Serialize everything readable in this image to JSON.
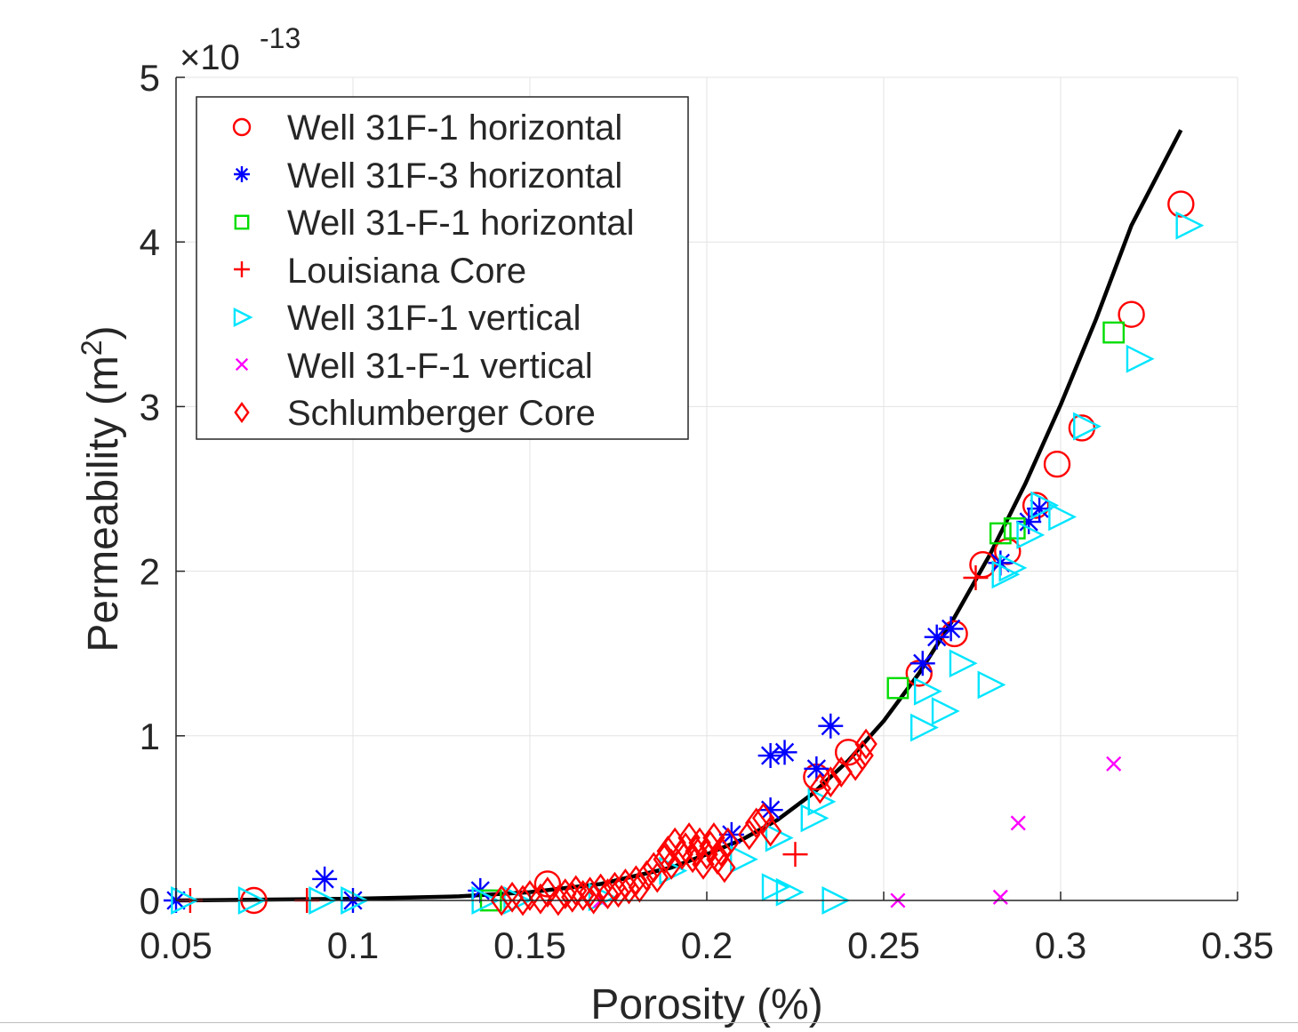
{
  "chart_data": {
    "type": "scatter",
    "xlabel": "Porosity (%)",
    "ylabel_base": "Permeability (m",
    "ylabel_sup": "2",
    "ylabel_close": ")",
    "exponent_prefix": "×10",
    "exponent_power": "-13",
    "xlim": [
      0.05,
      0.35
    ],
    "ylim": [
      0,
      5
    ],
    "xticks": [
      "0.05",
      "0.1",
      "0.15",
      "0.2",
      "0.25",
      "0.3",
      "0.35"
    ],
    "yticks": [
      "0",
      "1",
      "2",
      "3",
      "4",
      "5"
    ],
    "grid": true,
    "legend_position": "top-left",
    "series": [
      {
        "name": "Well 31F-1 horizontal",
        "marker": "circle",
        "color": "#ff0000",
        "points": [
          [
            0.072,
            0.0
          ],
          [
            0.155,
            0.1
          ],
          [
            0.231,
            0.75
          ],
          [
            0.24,
            0.9
          ],
          [
            0.26,
            1.38
          ],
          [
            0.27,
            1.62
          ],
          [
            0.278,
            2.04
          ],
          [
            0.285,
            2.12
          ],
          [
            0.293,
            2.4
          ],
          [
            0.299,
            2.65
          ],
          [
            0.306,
            2.87
          ],
          [
            0.32,
            3.56
          ],
          [
            0.334,
            4.23
          ]
        ]
      },
      {
        "name": "Well 31F-3 horizontal",
        "marker": "asterisk",
        "color": "#0000ff",
        "points": [
          [
            0.05,
            0.0
          ],
          [
            0.092,
            0.13
          ],
          [
            0.1,
            0.0
          ],
          [
            0.136,
            0.06
          ],
          [
            0.207,
            0.4
          ],
          [
            0.218,
            0.88
          ],
          [
            0.218,
            0.55
          ],
          [
            0.222,
            0.9
          ],
          [
            0.231,
            0.8
          ],
          [
            0.235,
            1.06
          ],
          [
            0.261,
            1.44
          ],
          [
            0.265,
            1.6
          ],
          [
            0.269,
            1.65
          ],
          [
            0.283,
            2.05
          ],
          [
            0.291,
            2.3
          ],
          [
            0.294,
            2.38
          ]
        ]
      },
      {
        "name": "Well 31-F-1 horizontal",
        "marker": "square",
        "color": "#00dd00",
        "points": [
          [
            0.139,
            0.0
          ],
          [
            0.254,
            1.29
          ],
          [
            0.283,
            2.23
          ],
          [
            0.287,
            2.26
          ],
          [
            0.315,
            3.45
          ]
        ]
      },
      {
        "name": "Louisiana Core",
        "marker": "plus",
        "color": "#ff0000",
        "points": [
          [
            0.054,
            0.0
          ],
          [
            0.087,
            0.0
          ],
          [
            0.225,
            0.28
          ],
          [
            0.276,
            1.96
          ]
        ]
      },
      {
        "name": "Well 31F-1 vertical",
        "marker": "triangle-right",
        "color": "#00e5ff",
        "points": [
          [
            0.052,
            0.0
          ],
          [
            0.071,
            0.0
          ],
          [
            0.091,
            0.0
          ],
          [
            0.1,
            0.0
          ],
          [
            0.137,
            0.0
          ],
          [
            0.146,
            0.0
          ],
          [
            0.17,
            0.02
          ],
          [
            0.19,
            0.18
          ],
          [
            0.21,
            0.25
          ],
          [
            0.219,
            0.08
          ],
          [
            0.223,
            0.05
          ],
          [
            0.22,
            0.38
          ],
          [
            0.23,
            0.5
          ],
          [
            0.232,
            0.6
          ],
          [
            0.236,
            0.0
          ],
          [
            0.261,
            1.05
          ],
          [
            0.262,
            1.27
          ],
          [
            0.267,
            1.15
          ],
          [
            0.272,
            1.44
          ],
          [
            0.28,
            1.31
          ],
          [
            0.284,
            1.98
          ],
          [
            0.286,
            2.02
          ],
          [
            0.291,
            2.22
          ],
          [
            0.295,
            2.4
          ],
          [
            0.3,
            2.33
          ],
          [
            0.307,
            2.88
          ],
          [
            0.322,
            3.29
          ],
          [
            0.336,
            4.1
          ]
        ]
      },
      {
        "name": "Well 31-F-1 vertical",
        "marker": "x",
        "color": "#ff00ff",
        "points": [
          [
            0.17,
            0.0
          ],
          [
            0.254,
            0.0
          ],
          [
            0.283,
            0.02
          ],
          [
            0.288,
            0.47
          ],
          [
            0.315,
            0.83
          ]
        ]
      },
      {
        "name": "Schlumberger Core",
        "marker": "diamond",
        "color": "#ff0000",
        "points": [
          [
            0.142,
            0.0
          ],
          [
            0.145,
            0.02
          ],
          [
            0.148,
            0.0
          ],
          [
            0.15,
            0.03
          ],
          [
            0.153,
            0.01
          ],
          [
            0.155,
            0.05
          ],
          [
            0.158,
            0.0
          ],
          [
            0.16,
            0.04
          ],
          [
            0.162,
            0.02
          ],
          [
            0.163,
            0.06
          ],
          [
            0.165,
            0.03
          ],
          [
            0.167,
            0.05
          ],
          [
            0.168,
            0.01
          ],
          [
            0.17,
            0.07
          ],
          [
            0.172,
            0.04
          ],
          [
            0.174,
            0.08
          ],
          [
            0.175,
            0.05
          ],
          [
            0.177,
            0.1
          ],
          [
            0.178,
            0.07
          ],
          [
            0.18,
            0.12
          ],
          [
            0.181,
            0.08
          ],
          [
            0.183,
            0.15
          ],
          [
            0.185,
            0.2
          ],
          [
            0.186,
            0.14
          ],
          [
            0.188,
            0.25
          ],
          [
            0.189,
            0.3
          ],
          [
            0.19,
            0.22
          ],
          [
            0.191,
            0.35
          ],
          [
            0.193,
            0.28
          ],
          [
            0.194,
            0.32
          ],
          [
            0.195,
            0.38
          ],
          [
            0.196,
            0.26
          ],
          [
            0.197,
            0.3
          ],
          [
            0.198,
            0.35
          ],
          [
            0.199,
            0.22
          ],
          [
            0.2,
            0.28
          ],
          [
            0.201,
            0.33
          ],
          [
            0.202,
            0.38
          ],
          [
            0.203,
            0.25
          ],
          [
            0.204,
            0.3
          ],
          [
            0.205,
            0.2
          ],
          [
            0.206,
            0.35
          ],
          [
            0.212,
            0.4
          ],
          [
            0.214,
            0.47
          ],
          [
            0.216,
            0.5
          ],
          [
            0.218,
            0.42
          ],
          [
            0.232,
            0.68
          ],
          [
            0.235,
            0.72
          ],
          [
            0.238,
            0.78
          ],
          [
            0.242,
            0.82
          ],
          [
            0.244,
            0.88
          ],
          [
            0.245,
            0.95
          ]
        ]
      },
      {
        "name": "",
        "type": "line",
        "color": "#000000",
        "points": [
          [
            0.05,
            0.0
          ],
          [
            0.1,
            0.01
          ],
          [
            0.13,
            0.025
          ],
          [
            0.15,
            0.05
          ],
          [
            0.17,
            0.1
          ],
          [
            0.19,
            0.2
          ],
          [
            0.2,
            0.28
          ],
          [
            0.21,
            0.37
          ],
          [
            0.22,
            0.49
          ],
          [
            0.23,
            0.65
          ],
          [
            0.24,
            0.85
          ],
          [
            0.25,
            1.09
          ],
          [
            0.26,
            1.38
          ],
          [
            0.27,
            1.72
          ],
          [
            0.28,
            2.1
          ],
          [
            0.29,
            2.53
          ],
          [
            0.3,
            3.01
          ],
          [
            0.31,
            3.53
          ],
          [
            0.32,
            4.1
          ],
          [
            0.334,
            4.68
          ]
        ]
      }
    ]
  }
}
